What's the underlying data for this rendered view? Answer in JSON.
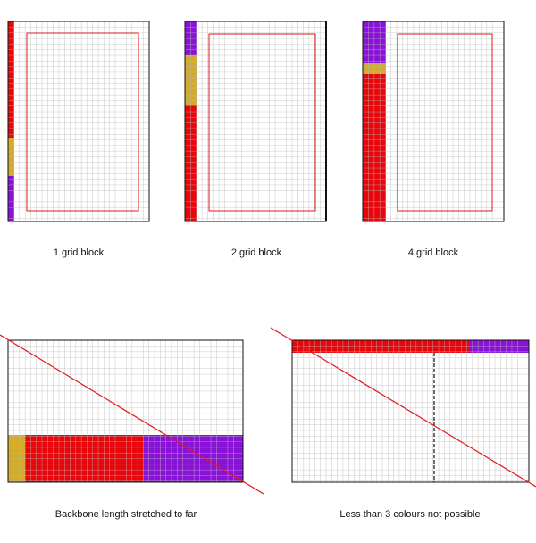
{
  "panels": [
    {
      "caption": "1 grid block"
    },
    {
      "caption": "2 grid block"
    },
    {
      "caption": "4 grid block"
    },
    {
      "caption": "Backbone length stretched to far"
    },
    {
      "caption": "Less than 3 colours not possible"
    }
  ]
}
